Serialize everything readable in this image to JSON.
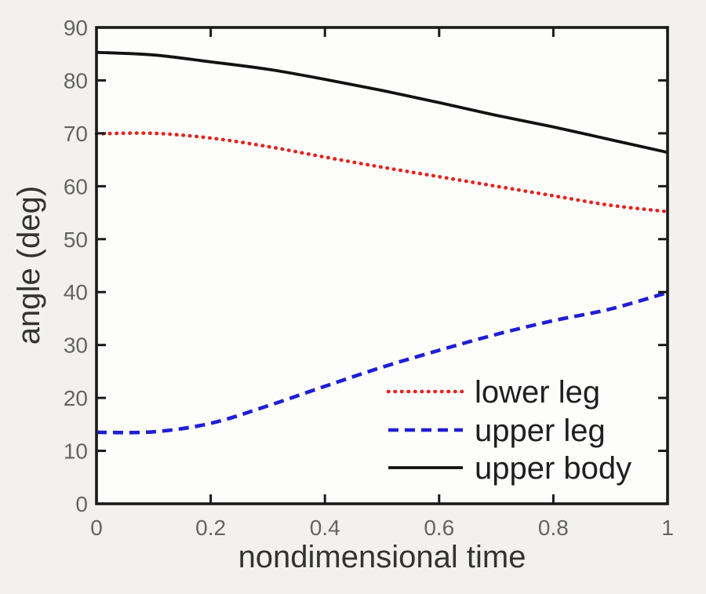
{
  "figure": {
    "background": "#f2f1ee",
    "plot_background": "#fdfdfc",
    "axis_color": "#1a1a1a",
    "tick_label_color": "#646464",
    "axis_label_color": "#333333",
    "legend_text_color": "#1f1f1f"
  },
  "chart_data": {
    "type": "line",
    "title": "",
    "xlabel": "nondimensional time",
    "ylabel": "angle (deg)",
    "xlim": [
      0,
      1
    ],
    "ylim": [
      0,
      90
    ],
    "grid": false,
    "box": true,
    "x_ticks": [
      0,
      0.2,
      0.4,
      0.6,
      0.8,
      1
    ],
    "x_tick_labels": [
      "0",
      "0.2",
      "0.4",
      "0.6",
      "0.8",
      "1"
    ],
    "y_ticks": [
      0,
      10,
      20,
      30,
      40,
      50,
      60,
      70,
      80,
      90
    ],
    "y_tick_labels": [
      "0",
      "10",
      "20",
      "30",
      "40",
      "50",
      "60",
      "70",
      "80",
      "90"
    ],
    "x": [
      0,
      0.1,
      0.2,
      0.3,
      0.4,
      0.5,
      0.6,
      0.7,
      0.8,
      0.9,
      1.0
    ],
    "series": [
      {
        "name": "lower leg",
        "color": "#e2251d",
        "style": "dotted",
        "values": [
          69.9,
          70.0,
          69.1,
          67.5,
          65.5,
          63.6,
          61.8,
          60.0,
          58.2,
          56.4,
          55.2
        ]
      },
      {
        "name": "upper leg",
        "color": "#1e1ed6",
        "style": "dashed",
        "values": [
          13.5,
          13.6,
          15.2,
          18.5,
          22.2,
          25.8,
          29.0,
          32.0,
          34.6,
          36.8,
          39.9
        ]
      },
      {
        "name": "upper body",
        "color": "#121212",
        "style": "solid",
        "values": [
          85.3,
          84.8,
          83.5,
          82.1,
          80.2,
          78.1,
          75.8,
          73.4,
          71.2,
          68.8,
          66.4
        ]
      }
    ],
    "legend": {
      "location": "lower right inside plot",
      "box": false,
      "entries": [
        "lower leg",
        "upper leg",
        "upper body"
      ]
    }
  }
}
